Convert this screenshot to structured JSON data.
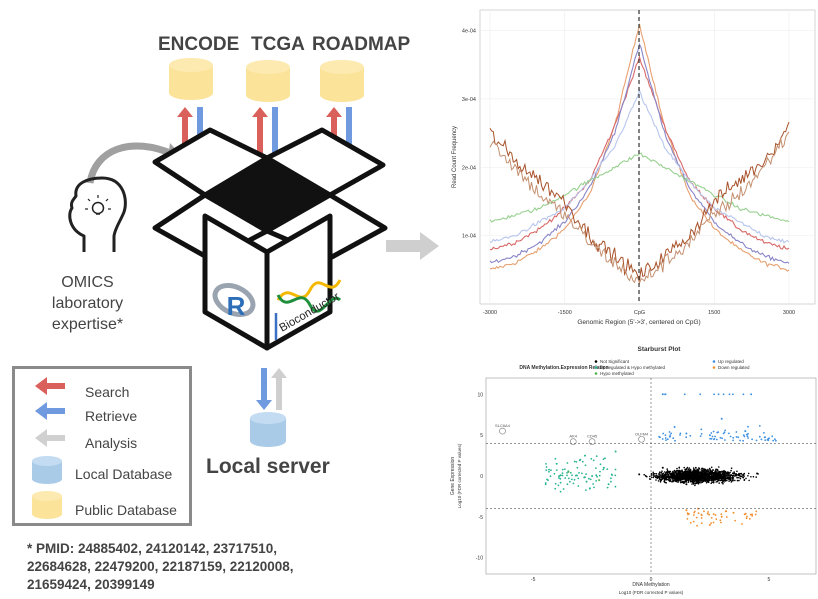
{
  "sources": [
    {
      "name": "ENCODE"
    },
    {
      "name": "TCGA"
    },
    {
      "name": "ROADMAP"
    }
  ],
  "expertise_lines": [
    "OMICS",
    "laboratory",
    "expertise*"
  ],
  "local_server_label": "Local server",
  "package_text": "Bioconductor",
  "r_logo_letter": "R",
  "legend": {
    "search": "Search",
    "retrieve": "Retrieve",
    "analysis": "Analysis",
    "local_db": "Local Database",
    "public_db": "Public Database"
  },
  "pmid_lines": [
    "* PMID: 24885402, 24120142, 23717510,",
    "22684628, 22479200, 22187159, 22120008,",
    "21659424, 20399149"
  ],
  "colors": {
    "search": "#d9605b",
    "retrieve": "#6f9ae0",
    "analysis": "#cfcfcf",
    "local_db": "#a9cbe8",
    "public_db": "#fbe39a",
    "text": "#444444"
  },
  "chart_top": {
    "ylabel": "Read Count Frequency",
    "xlabel": "Genomic Region (5'->3', centered on CpG)",
    "xticks": [
      "-3000",
      "-1500",
      "CpG",
      "1500",
      "3000"
    ],
    "yticks": [
      "4e-04",
      "3e-04",
      "2e-04",
      "1e-04"
    ]
  },
  "chart_bottom": {
    "title": "Starburst Plot",
    "legend_title": "DNA Methylation.Expression Relation",
    "legend_items": [
      "Not Significant",
      "Up regulated & Hypo methylated",
      "Hypo methylated",
      "Up regulated",
      "Down regulated"
    ],
    "ylabel": "Gene Expression",
    "ylabel_sub": "Log10 (FDR corrected P values)",
    "xlabel": "DNA Methylation",
    "xlabel_sub": "Log10 (FDR corrected P values)",
    "xticks": [
      "-5",
      "0",
      "5"
    ],
    "yticks": [
      "10",
      "5",
      "0",
      "-5",
      "-10"
    ],
    "annotations": [
      "SLC6A4",
      "AK4",
      "CD45",
      "OLFM4"
    ]
  },
  "chart_data": [
    {
      "type": "line",
      "xlabel": "Genomic Region (5'->3', centered on CpG)",
      "ylabel": "Read Count Frequency",
      "xlim": [
        -3000,
        3000
      ],
      "ylim": [
        0,
        0.00043
      ],
      "x": [
        -3000,
        -2500,
        -2000,
        -1500,
        -1000,
        -500,
        0,
        500,
        1000,
        1500,
        2000,
        2500,
        3000
      ],
      "series": [
        {
          "color": "#e8a070",
          "values": [
            5e-05,
            6e-05,
            8e-05,
            0.00011,
            0.00016,
            0.00026,
            0.00041,
            0.00026,
            0.00016,
            0.00011,
            8e-05,
            6e-05,
            5e-05
          ]
        },
        {
          "color": "#d86a68",
          "values": [
            8e-05,
            9e-05,
            0.00011,
            0.00014,
            0.00018,
            0.00026,
            0.00036,
            0.00026,
            0.00018,
            0.00014,
            0.00011,
            9e-05,
            8e-05
          ]
        },
        {
          "color": "#8a86c8",
          "values": [
            6e-05,
            7e-05,
            9e-05,
            0.00012,
            0.00017,
            0.00025,
            0.00038,
            0.00025,
            0.00017,
            0.00012,
            9e-05,
            7e-05,
            6e-05
          ]
        },
        {
          "color": "#b8c6ee",
          "values": [
            9e-05,
            0.0001,
            0.00012,
            0.00014,
            0.00018,
            0.00023,
            0.00031,
            0.00023,
            0.00018,
            0.00014,
            0.00012,
            0.0001,
            9e-05
          ]
        },
        {
          "color": "#98d090",
          "values": [
            0.00012,
            0.00013,
            0.00014,
            0.00016,
            0.00018,
            0.0002,
            0.00022,
            0.0002,
            0.00018,
            0.00016,
            0.00014,
            0.00013,
            0.00012
          ]
        },
        {
          "color": "#a8522a",
          "values": [
            0.00025,
            0.00021,
            0.00018,
            0.00015,
            0.0001,
            7e-05,
            4e-05,
            7e-05,
            0.0001,
            0.00015,
            0.00018,
            0.00021,
            0.00026
          ]
        },
        {
          "color": "#c49070",
          "values": [
            0.00024,
            0.0002,
            0.00016,
            0.00013,
            9e-05,
            6e-05,
            3e-05,
            6e-05,
            9e-05,
            0.00013,
            0.00016,
            0.0002,
            0.00025
          ]
        }
      ]
    },
    {
      "type": "scatter",
      "title": "Starburst Plot",
      "xlabel": "DNA Methylation",
      "ylabel": "Gene Expression",
      "xlim": [
        -7,
        7
      ],
      "ylim": [
        -12,
        12
      ],
      "series": [
        {
          "name": "Not Significant",
          "color": "#000000",
          "points": [
            [
              1,
              0
            ],
            [
              2,
              0.5
            ],
            [
              -0.5,
              0.2
            ],
            [
              3,
              -0.5
            ],
            [
              4.5,
              0.3
            ],
            [
              1.5,
              -1
            ],
            [
              0.5,
              1
            ]
          ]
        },
        {
          "name": "Up regulated & Hypo methylated",
          "color": "#2ab592",
          "points": [
            [
              -2,
              1
            ],
            [
              -3,
              2
            ],
            [
              -1.5,
              3
            ],
            [
              -2.5,
              0
            ],
            [
              -4,
              1.5
            ],
            [
              -2.8,
              2.5
            ],
            [
              -1.8,
              -1
            ]
          ]
        },
        {
          "name": "Hypo methylated",
          "color": "#4daf4a",
          "points": [
            [
              -3.5,
              0.5
            ],
            [
              -2.2,
              -0.5
            ]
          ]
        },
        {
          "name": "Up regulated",
          "color": "#3c8fe0",
          "points": [
            [
              1,
              6
            ],
            [
              2.5,
              5
            ],
            [
              0.5,
              10
            ],
            [
              3,
              7
            ],
            [
              4,
              5.5
            ],
            [
              1.5,
              5.2
            ],
            [
              0.8,
              4.8
            ]
          ]
        },
        {
          "name": "Down regulated",
          "color": "#f28e2b",
          "points": [
            [
              2,
              -4
            ],
            [
              3,
              -5
            ],
            [
              2.5,
              -6
            ],
            [
              3.5,
              -4.5
            ],
            [
              1.5,
              -4.2
            ]
          ]
        }
      ]
    }
  ]
}
